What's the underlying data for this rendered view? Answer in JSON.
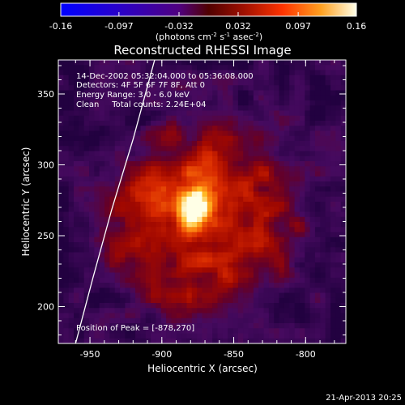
{
  "chart_data": {
    "type": "heatmap",
    "title": "Reconstructed RHESSI Image",
    "xlabel": "Heliocentric X (arcsec)",
    "ylabel": "Heliocentric Y (arcsec)",
    "xlim": [
      -972,
      -772
    ],
    "ylim": [
      174,
      374
    ],
    "x_ticks": [
      -950,
      -900,
      -850,
      -800
    ],
    "y_ticks": [
      200,
      250,
      300,
      350
    ],
    "colorbar": {
      "ticks": [
        "-0.16",
        "-0.097",
        "-0.032",
        "0.032",
        "0.097",
        "0.16"
      ],
      "range": [
        -0.16,
        0.16
      ],
      "unit_text": "(photons cm",
      "unit_exp1": "-2",
      "unit_mid": " s",
      "unit_exp2": "-1",
      "unit_mid2": " asec",
      "unit_exp3": "-2",
      "unit_close": ")"
    },
    "annotations": [
      "14-Dec-2002 05:32:04.000 to 05:36:08.000",
      "Detectors: 4F 5F 6F 7F 8F, Att 0",
      "Energy Range: 3.0 - 6.0 keV",
      "Clean     Total counts: 2.24E+04"
    ],
    "peak_label": "Position of Peak = [-878,270]",
    "peak": {
      "x": -878,
      "y": 270,
      "value": 0.16
    },
    "source": {
      "cx": -872,
      "cy": 262,
      "r": 70
    },
    "limb": [
      {
        "x": -960,
        "y": 174
      },
      {
        "x": -948,
        "y": 220
      },
      {
        "x": -935,
        "y": 268
      },
      {
        "x": -920,
        "y": 318
      },
      {
        "x": -905,
        "y": 374
      }
    ]
  },
  "footer": {
    "date": "21-Apr-2013 20:25"
  }
}
